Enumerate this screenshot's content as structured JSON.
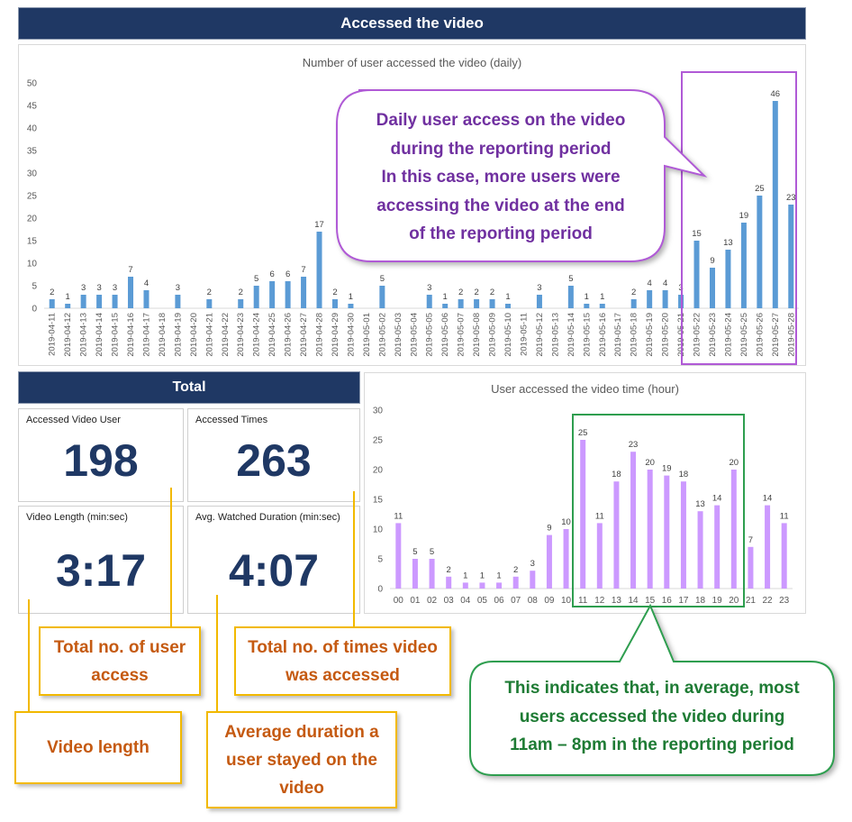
{
  "banner_top": "Accessed the video",
  "banner_total": "Total",
  "cards": [
    {
      "label": "Accessed Video User",
      "value": "198"
    },
    {
      "label": "Accessed Times",
      "value": "263"
    },
    {
      "label": "Video Length (min:sec)",
      "value": "3:17"
    },
    {
      "label": "Avg. Watched Duration (min:sec)",
      "value": "4:07"
    }
  ],
  "callouts": {
    "total_users": "Total no. of user access",
    "total_times": "Total no. of times video was accessed",
    "video_length": "Video length",
    "avg_duration": "Average duration a user stayed on the video",
    "daily_note": [
      "Daily user access on the video",
      "during the reporting period",
      "In this case, more users were",
      "accessing the video at the end",
      "of the reporting period"
    ],
    "hourly_note": [
      "This indicates that, in average, most",
      "users accessed the video during",
      "11am – 8pm in the reporting period"
    ]
  },
  "colors": {
    "daily_bar": "#5b9bd5",
    "hourly_bar": "#cc99ff",
    "banner": "#1f3864",
    "highlight_daily": "#b05ad6",
    "highlight_hourly": "#2e9e4f",
    "callout_border": "#f2b900",
    "callout_text": "#c55a11"
  },
  "chart_data": [
    {
      "type": "bar",
      "title": "Number of user accessed the video (daily)",
      "categories": [
        "2019-04-11",
        "2019-04-12",
        "2019-04-13",
        "2019-04-14",
        "2019-04-15",
        "2019-04-16",
        "2019-04-17",
        "2019-04-18",
        "2019-04-19",
        "2019-04-20",
        "2019-04-21",
        "2019-04-22",
        "2019-04-23",
        "2019-04-24",
        "2019-04-25",
        "2019-04-26",
        "2019-04-27",
        "2019-04-28",
        "2019-04-29",
        "2019-04-30",
        "2019-05-01",
        "2019-05-02",
        "2019-05-03",
        "2019-05-04",
        "2019-05-05",
        "2019-05-06",
        "2019-05-07",
        "2019-05-08",
        "2019-05-09",
        "2019-05-10",
        "2019-05-11",
        "2019-05-12",
        "2019-05-13",
        "2019-05-14",
        "2019-05-15",
        "2019-05-16",
        "2019-05-17",
        "2019-05-18",
        "2019-05-19",
        "2019-05-20",
        "2019-05-21",
        "2019-05-22",
        "2019-05-23",
        "2019-05-24",
        "2019-05-25",
        "2019-05-26",
        "2019-05-27",
        "2019-05-28"
      ],
      "values": [
        2,
        1,
        3,
        3,
        3,
        7,
        4,
        null,
        3,
        null,
        2,
        null,
        2,
        5,
        6,
        6,
        7,
        17,
        2,
        1,
        null,
        5,
        null,
        null,
        3,
        1,
        2,
        2,
        2,
        1,
        null,
        3,
        null,
        5,
        1,
        1,
        null,
        2,
        4,
        4,
        3,
        15,
        9,
        13,
        19,
        25,
        46,
        23
      ],
      "yticks": [
        0,
        5,
        10,
        15,
        20,
        25,
        30,
        35,
        40,
        45,
        50
      ],
      "ylim": [
        0,
        50
      ],
      "xlabel": "",
      "ylabel": "",
      "grid": false
    },
    {
      "type": "bar",
      "title": "User accessed the video time (hour)",
      "categories": [
        "00",
        "01",
        "02",
        "03",
        "04",
        "05",
        "06",
        "07",
        "08",
        "09",
        "10",
        "11",
        "12",
        "13",
        "14",
        "15",
        "16",
        "17",
        "18",
        "19",
        "20",
        "21",
        "22",
        "23"
      ],
      "values": [
        11,
        5,
        5,
        2,
        1,
        1,
        1,
        2,
        3,
        9,
        10,
        25,
        11,
        18,
        23,
        20,
        19,
        18,
        13,
        14,
        20,
        7,
        14,
        11
      ],
      "yticks": [
        0,
        5,
        10,
        15,
        20,
        25,
        30
      ],
      "ylim": [
        0,
        30
      ],
      "xlabel": "",
      "ylabel": "",
      "grid": false
    }
  ]
}
